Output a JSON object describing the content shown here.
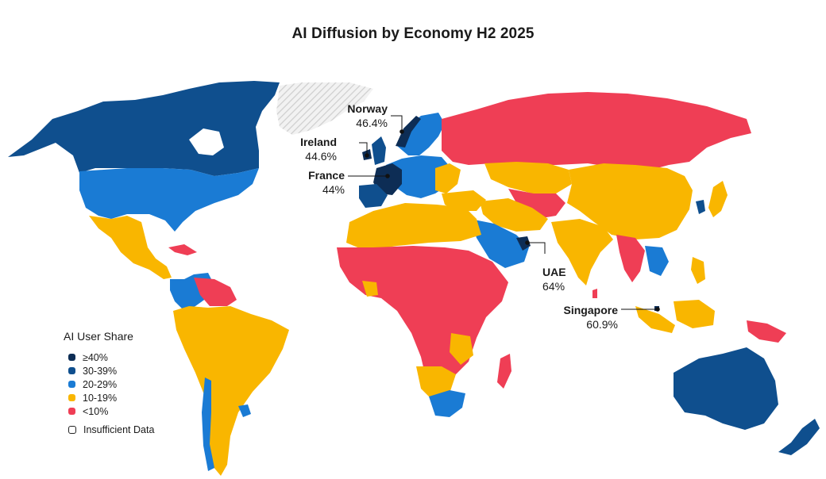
{
  "title": "AI Diffusion by Economy H2 2025",
  "colors": {
    "band_40_plus": "#0d2d55",
    "band_30_39": "#0f4f8e",
    "band_20_29": "#1a7bd4",
    "band_10_19": "#f9b600",
    "band_lt_10": "#ef3e55",
    "insufficient": "#d9d9d9"
  },
  "legend": {
    "title": "AI User Share",
    "items": [
      {
        "label": "≥40%",
        "color": "#0d2d55"
      },
      {
        "label": "30-39%",
        "color": "#0f4f8e"
      },
      {
        "label": "20-29%",
        "color": "#1a7bd4"
      },
      {
        "label": "10-19%",
        "color": "#f9b600"
      },
      {
        "label": "<10%",
        "color": "#ef3e55"
      }
    ],
    "insufficient_label": "Insufficient Data"
  },
  "callouts": {
    "norway": {
      "name": "Norway",
      "value": "46.4%"
    },
    "ireland": {
      "name": "Ireland",
      "value": "44.6%"
    },
    "france": {
      "name": "France",
      "value": "44%"
    },
    "uae": {
      "name": "UAE",
      "value": "64%"
    },
    "singapore": {
      "name": "Singapore",
      "value": "60.9%"
    }
  }
}
